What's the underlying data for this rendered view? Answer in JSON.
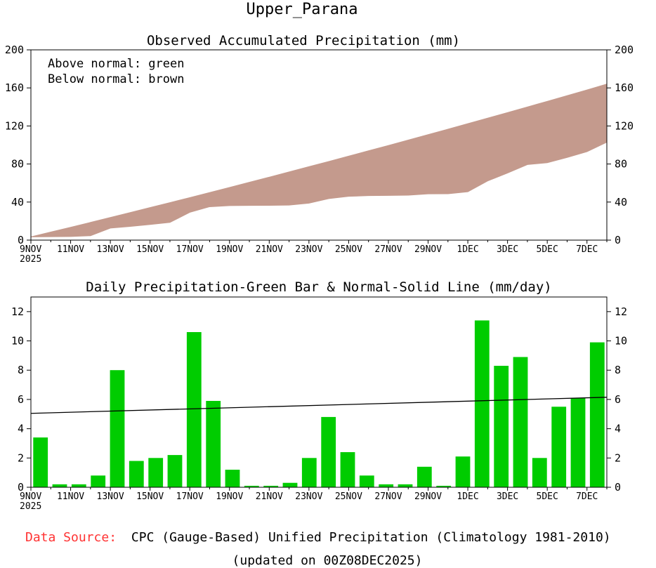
{
  "page_title": "Upper_Parana",
  "chart_data": [
    {
      "type": "area",
      "title": "Observed Accumulated Precipitation (mm)",
      "notes": [
        "Above normal: green",
        "Below normal: brown"
      ],
      "colors": {
        "below_normal": "#c49a8d",
        "above_normal": "#00cc00"
      },
      "ylim": [
        0,
        200
      ],
      "y_ticks": [
        0,
        40,
        80,
        120,
        160,
        200
      ],
      "x_tick_labels": [
        "9NOV",
        "11NOV",
        "13NOV",
        "15NOV",
        "17NOV",
        "19NOV",
        "21NOV",
        "23NOV",
        "25NOV",
        "27NOV",
        "29NOV",
        "1DEC",
        "3DEC",
        "5DEC",
        "7DEC"
      ],
      "x_tick_days": [
        0,
        2,
        4,
        6,
        8,
        10,
        12,
        14,
        16,
        18,
        20,
        22,
        24,
        26,
        28
      ],
      "x_start_year": "2025",
      "x_range": [
        0,
        29
      ],
      "days": [
        0,
        1,
        2,
        3,
        4,
        5,
        6,
        7,
        8,
        9,
        10,
        11,
        12,
        13,
        14,
        15,
        16,
        17,
        18,
        19,
        20,
        21,
        22,
        23,
        24,
        25,
        26,
        27,
        28,
        29
      ],
      "observed": [
        3.4,
        3.6,
        3.8,
        4.6,
        12.6,
        14.4,
        16.4,
        18.6,
        29.2,
        35.1,
        36.3,
        36.4,
        36.5,
        36.8,
        38.8,
        43.6,
        46.0,
        46.8,
        47.0,
        47.2,
        48.6,
        48.7,
        50.8,
        62.2,
        70.5,
        79.4,
        81.4,
        86.9,
        93.0,
        102.9
      ],
      "normal": [
        3.4,
        8.5,
        13.5,
        18.6,
        23.8,
        29.0,
        34.2,
        39.4,
        44.7,
        50.0,
        55.4,
        60.8,
        66.2,
        71.7,
        77.2,
        82.7,
        88.3,
        93.9,
        99.5,
        105.2,
        110.9,
        116.6,
        122.4,
        128.2,
        134.1,
        140.0,
        145.9,
        151.9,
        157.9,
        164.0
      ]
    },
    {
      "type": "bar",
      "title": "Daily Precipitation-Green Bar & Normal-Solid Line (mm/day)",
      "series": [
        {
          "name": "Daily Precipitation",
          "color": "#00cc00",
          "values": [
            3.4,
            0.2,
            0.2,
            0.8,
            8.0,
            1.8,
            2.0,
            2.2,
            10.6,
            5.9,
            1.2,
            0.1,
            0.1,
            0.3,
            2.0,
            4.8,
            2.4,
            0.8,
            0.2,
            0.2,
            1.4,
            0.1,
            2.1,
            11.4,
            8.3,
            8.9,
            2.0,
            5.5,
            6.1,
            9.9
          ]
        },
        {
          "name": "Normal",
          "color": "#000000",
          "line": [
            5.05,
            6.15
          ]
        }
      ],
      "ylim": [
        0,
        13
      ],
      "y_ticks": [
        0,
        2,
        4,
        6,
        8,
        10,
        12
      ],
      "x_tick_labels": [
        "9NOV",
        "11NOV",
        "13NOV",
        "15NOV",
        "17NOV",
        "19NOV",
        "21NOV",
        "23NOV",
        "25NOV",
        "27NOV",
        "29NOV",
        "1DEC",
        "3DEC",
        "5DEC",
        "7DEC"
      ],
      "x_tick_days": [
        0,
        2,
        4,
        6,
        8,
        10,
        12,
        14,
        16,
        18,
        20,
        22,
        24,
        26,
        28
      ],
      "x_start_year": "2025",
      "x_range": [
        0,
        29
      ]
    }
  ],
  "footer": {
    "source_label": "Data Source:",
    "source_label_color": "#ff3333",
    "source_text": "CPC (Gauge-Based) Unified Precipitation (Climatology 1981-2010)",
    "updated": "(updated on 00Z08DEC2025)"
  }
}
